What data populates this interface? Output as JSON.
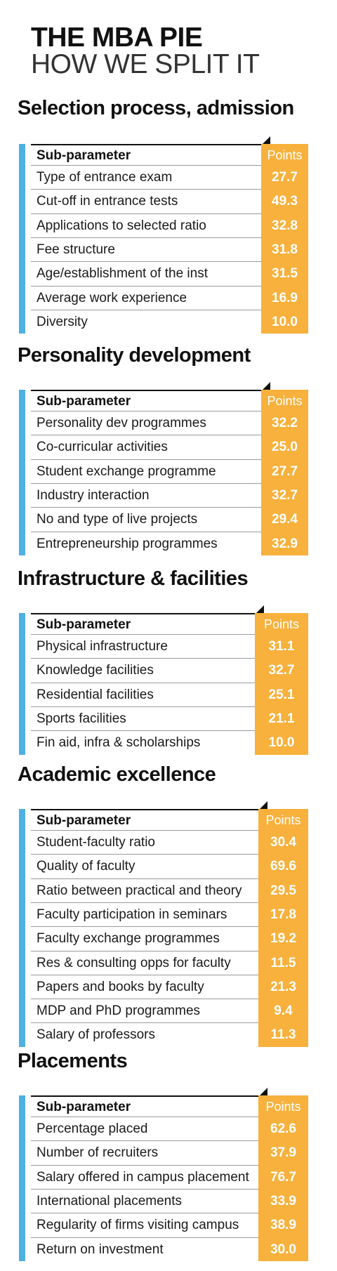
{
  "title_line1": "THE MBA PIE",
  "title_line2": "HOW WE SPLIT IT",
  "header": {
    "sub_parameter": "Sub-parameter",
    "points": "Points"
  },
  "sections": [
    {
      "title": "Selection process, admission",
      "rows": [
        {
          "label": "Type of entrance exam",
          "value": "27.7"
        },
        {
          "label": "Cut-off in entrance tests",
          "value": "49.3"
        },
        {
          "label": "Applications to selected ratio",
          "value": "32.8"
        },
        {
          "label": "Fee structure",
          "value": "31.8"
        },
        {
          "label": "Age/establishment of the inst",
          "value": "31.5"
        },
        {
          "label": "Average work experience",
          "value": "16.9"
        },
        {
          "label": "Diversity",
          "value": "10.0"
        }
      ]
    },
    {
      "title": "Personality development",
      "rows": [
        {
          "label": "Personality dev programmes",
          "value": "32.2"
        },
        {
          "label": "Co-curricular activities",
          "value": "25.0"
        },
        {
          "label": "Student exchange programme",
          "value": "27.7"
        },
        {
          "label": "Industry interaction",
          "value": "32.7"
        },
        {
          "label": "No and type of live projects",
          "value": "29.4"
        },
        {
          "label": "Entrepreneurship programmes",
          "value": "32.9"
        }
      ]
    },
    {
      "title": "Infrastructure & facilities",
      "rows": [
        {
          "label": "Physical infrastructure",
          "value": "31.1"
        },
        {
          "label": "Knowledge facilities",
          "value": "32.7"
        },
        {
          "label": "Residential facilities",
          "value": "25.1"
        },
        {
          "label": "Sports facilities",
          "value": "21.1"
        },
        {
          "label": "Fin aid, infra & scholarships",
          "value": "10.0"
        }
      ]
    },
    {
      "title": "Academic excellence",
      "rows": [
        {
          "label": "Student-faculty ratio",
          "value": "30.4"
        },
        {
          "label": "Quality of faculty",
          "value": "69.6"
        },
        {
          "label": "Ratio between practical and theory",
          "value": "29.5"
        },
        {
          "label": "Faculty participation in seminars",
          "value": "17.8"
        },
        {
          "label": "Faculty exchange programmes",
          "value": "19.2"
        },
        {
          "label": "Res & consulting opps for faculty",
          "value": "11.5"
        },
        {
          "label": "Papers and books by faculty",
          "value": "21.3"
        },
        {
          "label": "MDP and PhD programmes",
          "value": "9.4"
        },
        {
          "label": "Salary of professors",
          "value": "11.3"
        }
      ]
    },
    {
      "title": "Placements",
      "rows": [
        {
          "label": "Percentage placed",
          "value": "62.6"
        },
        {
          "label": "Number of recruiters",
          "value": "37.9"
        },
        {
          "label": "Salary offered in campus placement",
          "value": "76.7"
        },
        {
          "label": "International placements",
          "value": "33.9"
        },
        {
          "label": "Regularity of firms visiting campus",
          "value": "38.9"
        },
        {
          "label": "Return on investment",
          "value": "30.0"
        }
      ]
    }
  ],
  "colors": {
    "accent_blue": "#4fb0e2",
    "points_orange": "#f7b13c"
  }
}
